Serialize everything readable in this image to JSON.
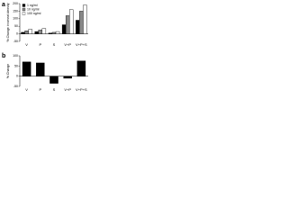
{
  "chart_data": [
    {
      "type": "bar",
      "label": "a",
      "ylabel": "% Change in vessel density",
      "categories": [
        "V",
        "P",
        "S",
        "V+P",
        "V+P+S"
      ],
      "series": [
        {
          "name": "1 ng/ml",
          "color": "#000000",
          "values": [
            10,
            15,
            5,
            60,
            90
          ]
        },
        {
          "name": "10 ng/ml",
          "color": "#888888",
          "values": [
            20,
            25,
            10,
            120,
            150
          ]
        },
        {
          "name": "100 ng/ml",
          "color": "#ffffff",
          "values": [
            30,
            35,
            15,
            160,
            190
          ]
        }
      ],
      "ylim": [
        -50,
        200
      ],
      "yticks": [
        -50,
        0,
        50,
        100,
        150,
        200
      ],
      "legend": "upper-left"
    },
    {
      "type": "bar",
      "label": "b",
      "ylabel": "% Change",
      "categories": [
        "V",
        "P",
        "S",
        "V+P",
        "V+P+S"
      ],
      "values": [
        70,
        65,
        -35,
        -10,
        75
      ],
      "color": "#000000",
      "ylim": [
        -50,
        100
      ],
      "yticks": [
        -50,
        0,
        50,
        100
      ]
    }
  ]
}
